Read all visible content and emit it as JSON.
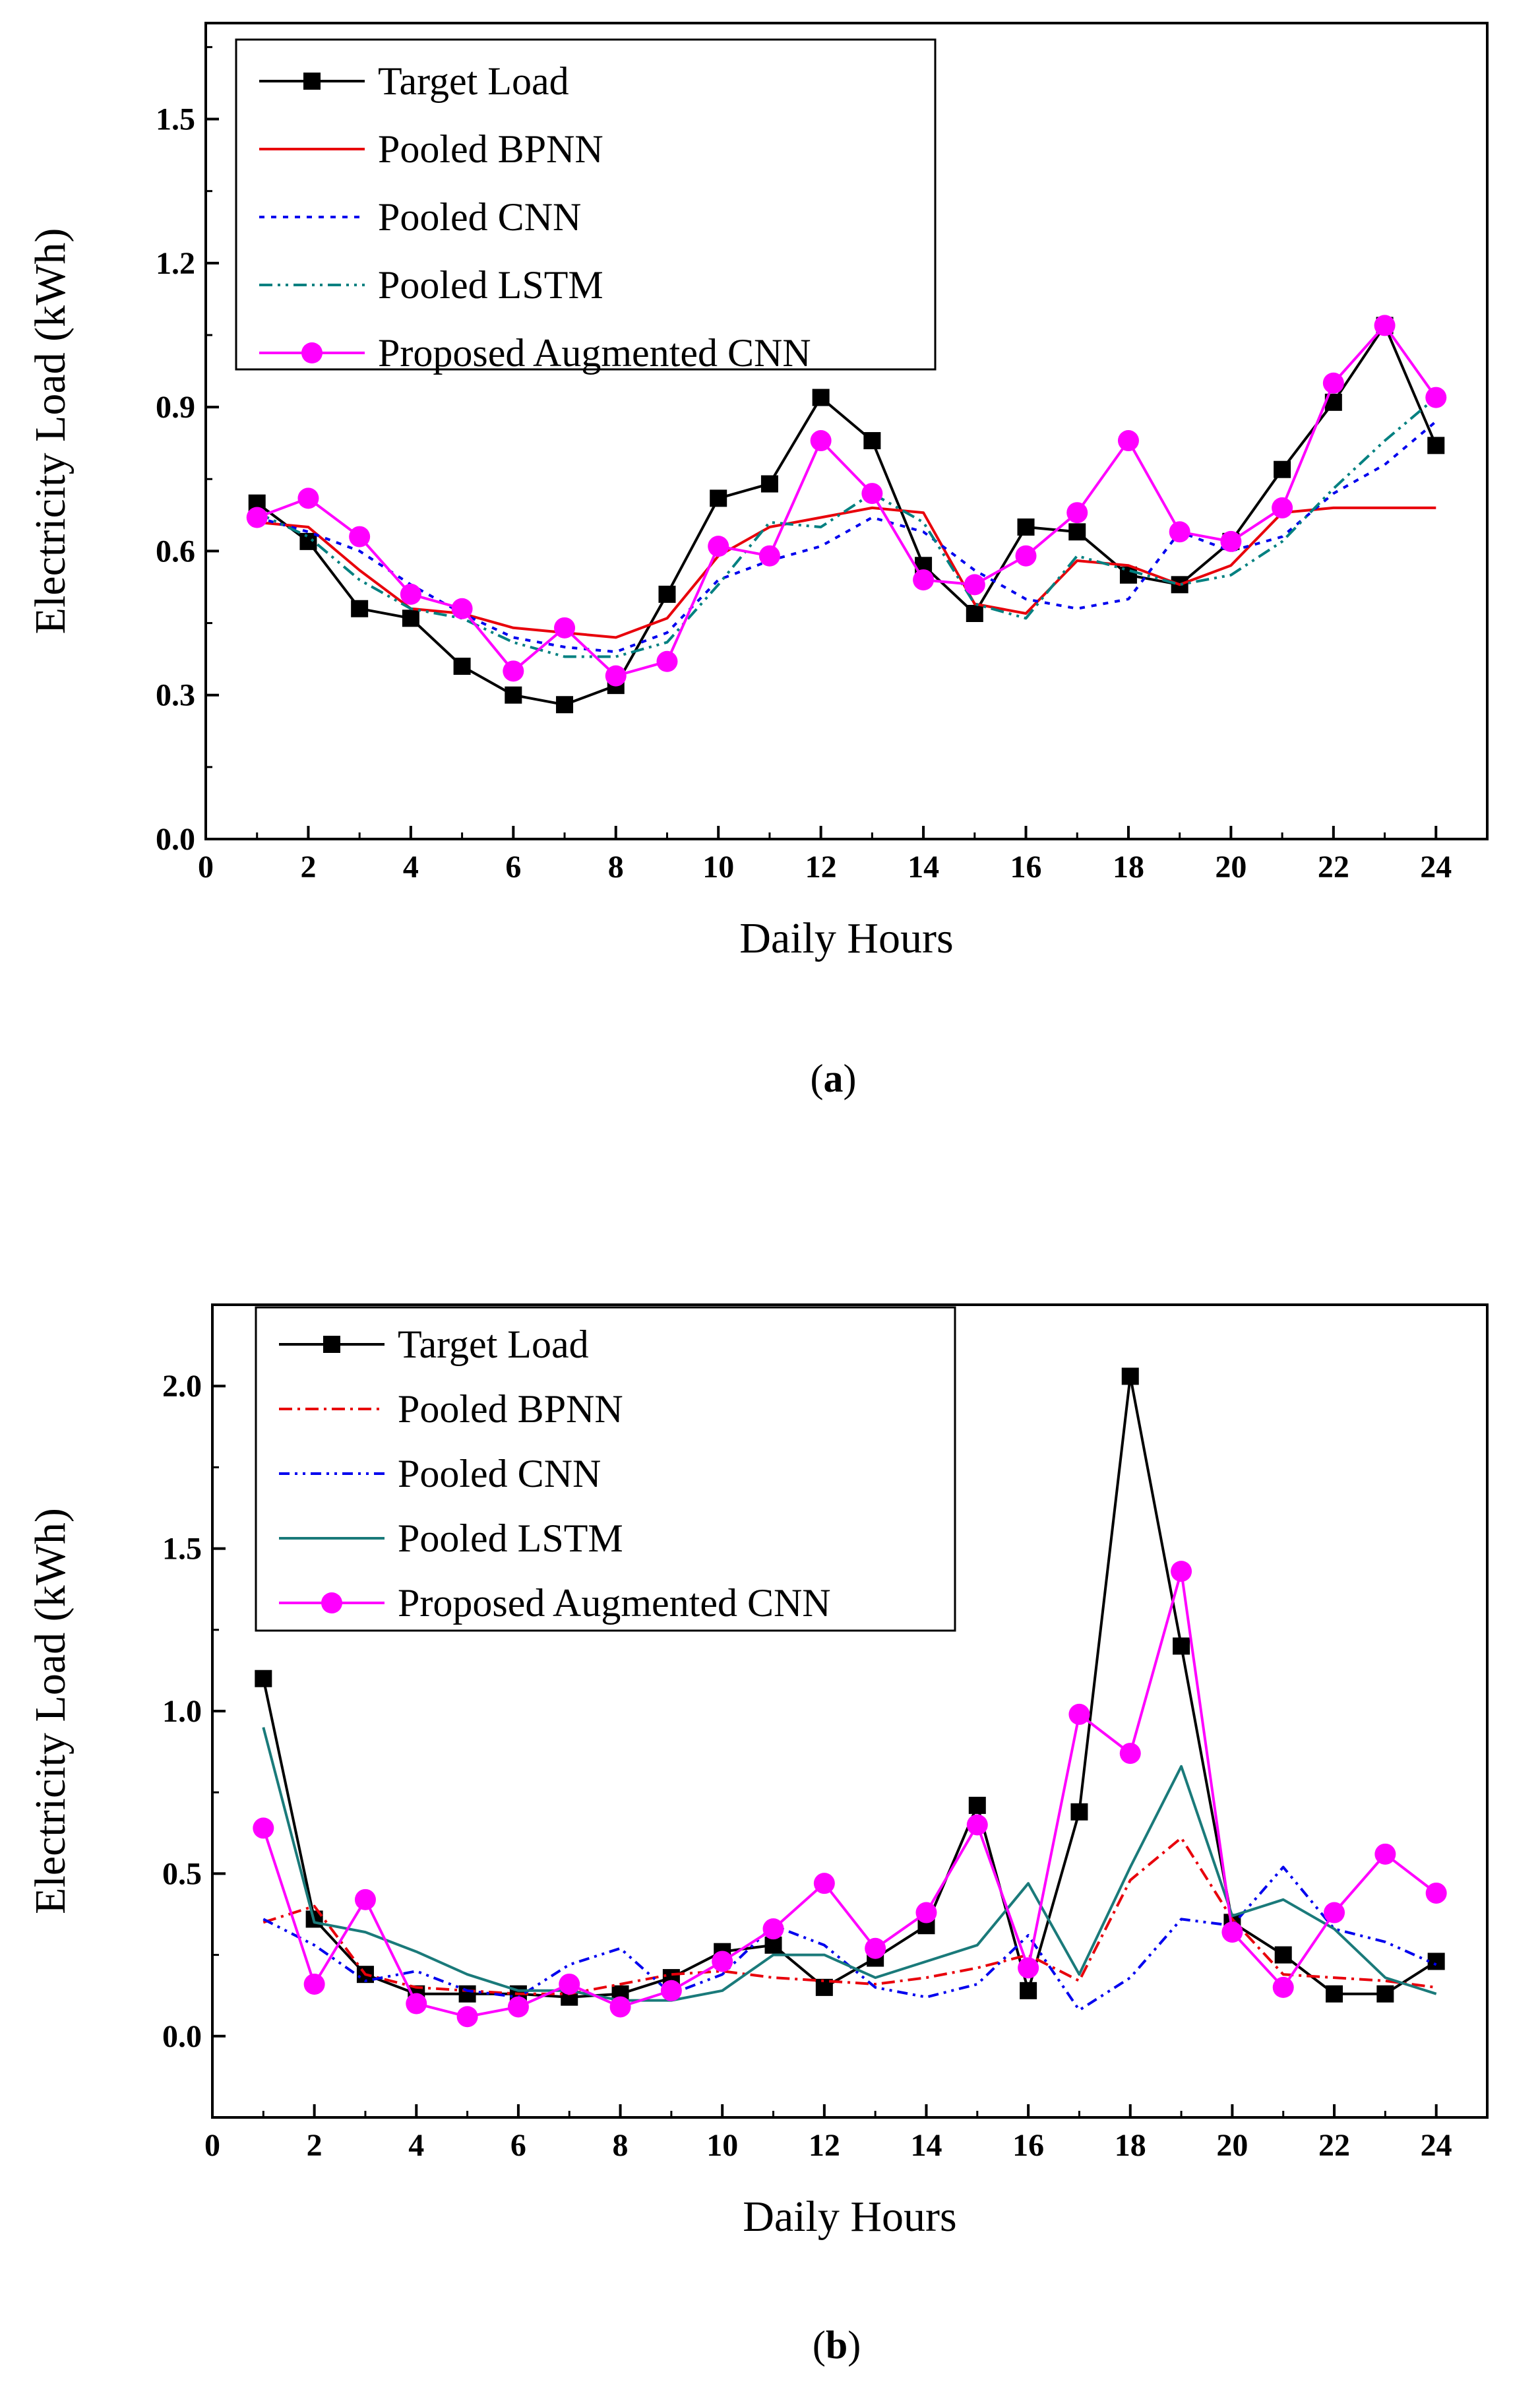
{
  "chart_data": [
    {
      "type": "line",
      "panel_label": "a",
      "xlabel": "Daily Hours",
      "ylabel": "Electricity Load (kWh)",
      "xlim": [
        0,
        25
      ],
      "ylim": [
        0,
        1.7
      ],
      "x_ticks": [
        0,
        2,
        4,
        6,
        8,
        10,
        12,
        14,
        16,
        18,
        20,
        22,
        24
      ],
      "y_ticks": [
        0.0,
        0.3,
        0.6,
        0.9,
        1.2,
        1.5
      ],
      "y_tick_labels": [
        "0.0",
        "0.3",
        "0.6",
        "0.9",
        "1.2",
        "1.5"
      ],
      "legend_position": "top-left",
      "x": [
        1,
        2,
        3,
        4,
        5,
        6,
        7,
        8,
        9,
        10,
        11,
        12,
        13,
        14,
        15,
        16,
        17,
        18,
        19,
        20,
        21,
        22,
        23,
        24
      ],
      "series": [
        {
          "name": "Target Load",
          "color": "#000000",
          "dash": "",
          "marker": "square",
          "values": [
            0.7,
            0.62,
            0.48,
            0.46,
            0.36,
            0.3,
            0.28,
            0.32,
            0.51,
            0.71,
            0.74,
            0.92,
            0.83,
            0.57,
            0.47,
            0.65,
            0.64,
            0.55,
            0.53,
            0.62,
            0.77,
            0.91,
            1.07,
            0.82
          ]
        },
        {
          "name": "Pooled BPNN",
          "color": "#e8000b",
          "dash": "",
          "marker": "none",
          "values": [
            0.66,
            0.65,
            0.56,
            0.48,
            0.47,
            0.44,
            0.43,
            0.42,
            0.46,
            0.59,
            0.65,
            0.67,
            0.69,
            0.68,
            0.49,
            0.47,
            0.58,
            0.57,
            0.53,
            0.57,
            0.68,
            0.69,
            0.69,
            0.69
          ]
        },
        {
          "name": "Pooled CNN",
          "color": "#0000ee",
          "dash": "8,10",
          "marker": "none",
          "values": [
            0.67,
            0.64,
            0.6,
            0.53,
            0.47,
            0.42,
            0.4,
            0.39,
            0.43,
            0.54,
            0.58,
            0.61,
            0.67,
            0.64,
            0.56,
            0.5,
            0.48,
            0.5,
            0.64,
            0.6,
            0.63,
            0.72,
            0.78,
            0.87
          ]
        },
        {
          "name": "Pooled LSTM",
          "color": "#008080",
          "dash": "20,8,4,8,4,8",
          "marker": "none",
          "values": [
            0.68,
            0.63,
            0.54,
            0.48,
            0.46,
            0.41,
            0.38,
            0.38,
            0.41,
            0.53,
            0.66,
            0.65,
            0.72,
            0.66,
            0.49,
            0.46,
            0.59,
            0.56,
            0.53,
            0.55,
            0.62,
            0.73,
            0.83,
            0.92
          ]
        },
        {
          "name": "Proposed Augmented CNN",
          "color": "#ff00ff",
          "dash": "",
          "marker": "circle",
          "values": [
            0.67,
            0.71,
            0.63,
            0.51,
            0.48,
            0.35,
            0.44,
            0.34,
            0.37,
            0.61,
            0.59,
            0.83,
            0.72,
            0.54,
            0.53,
            0.59,
            0.68,
            0.83,
            0.64,
            0.62,
            0.69,
            0.95,
            1.07,
            0.92
          ]
        }
      ]
    },
    {
      "type": "line",
      "panel_label": "b",
      "xlabel": "Daily Hours",
      "ylabel": "Electricity Load (kWh)",
      "xlim": [
        0,
        25
      ],
      "ylim": [
        -0.25,
        2.25
      ],
      "x_ticks": [
        0,
        2,
        4,
        6,
        8,
        10,
        12,
        14,
        16,
        18,
        20,
        22,
        24
      ],
      "y_ticks": [
        0.0,
        0.5,
        1.0,
        1.5,
        2.0
      ],
      "y_tick_labels": [
        "0.0",
        "0.5",
        "1.0",
        "1.5",
        "2.0"
      ],
      "legend_position": "top-left",
      "x": [
        1,
        2,
        3,
        4,
        5,
        6,
        7,
        8,
        9,
        10,
        11,
        12,
        13,
        14,
        15,
        16,
        17,
        18,
        19,
        20,
        21,
        22,
        23,
        24
      ],
      "series": [
        {
          "name": "Target Load",
          "color": "#000000",
          "dash": "",
          "marker": "square",
          "values": [
            1.1,
            0.36,
            0.19,
            0.13,
            0.13,
            0.13,
            0.12,
            0.13,
            0.18,
            0.26,
            0.28,
            0.15,
            0.24,
            0.34,
            0.71,
            0.14,
            0.69,
            2.03,
            1.2,
            0.35,
            0.25,
            0.13,
            0.13,
            0.23
          ]
        },
        {
          "name": "Pooled BPNN",
          "color": "#e8000b",
          "dash": "20,8,4,8",
          "marker": "none",
          "values": [
            0.35,
            0.4,
            0.19,
            0.15,
            0.14,
            0.13,
            0.13,
            0.16,
            0.19,
            0.2,
            0.18,
            0.17,
            0.16,
            0.18,
            0.21,
            0.25,
            0.17,
            0.48,
            0.61,
            0.36,
            0.19,
            0.18,
            0.17,
            0.15
          ]
        },
        {
          "name": "Pooled CNN",
          "color": "#0000ee",
          "dash": "16,8,4,8,4,8",
          "marker": "none",
          "values": [
            0.36,
            0.28,
            0.17,
            0.2,
            0.14,
            0.12,
            0.22,
            0.27,
            0.13,
            0.19,
            0.34,
            0.28,
            0.15,
            0.12,
            0.16,
            0.31,
            0.08,
            0.18,
            0.36,
            0.34,
            0.52,
            0.33,
            0.29,
            0.22
          ]
        },
        {
          "name": "Pooled LSTM",
          "color": "#1a7a7a",
          "dash": "",
          "marker": "none",
          "values": [
            0.95,
            0.35,
            0.32,
            0.26,
            0.19,
            0.14,
            0.14,
            0.11,
            0.11,
            0.14,
            0.25,
            0.25,
            0.18,
            0.23,
            0.28,
            0.47,
            0.19,
            0.52,
            0.83,
            0.37,
            0.42,
            0.33,
            0.18,
            0.13
          ]
        },
        {
          "name": "Proposed Augmented CNN",
          "color": "#ff00ff",
          "dash": "",
          "marker": "circle",
          "values": [
            0.64,
            0.16,
            0.42,
            0.1,
            0.06,
            0.09,
            0.16,
            0.09,
            0.14,
            0.23,
            0.33,
            0.47,
            0.27,
            0.38,
            0.65,
            0.21,
            0.99,
            0.87,
            1.43,
            0.32,
            0.15,
            0.38,
            0.56,
            0.44
          ]
        }
      ]
    }
  ]
}
